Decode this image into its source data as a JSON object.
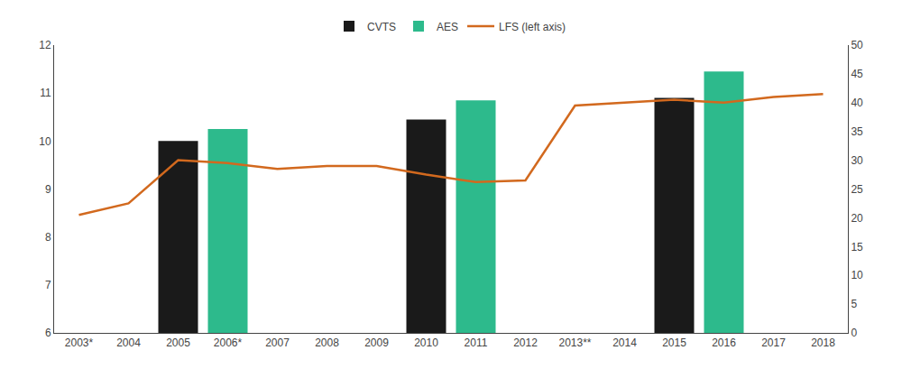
{
  "chart_data": {
    "type": "bar",
    "categories": [
      "2003*",
      "2004",
      "2005",
      "2006*",
      "2007",
      "2008",
      "2009",
      "2010",
      "2011",
      "2012",
      "2013**",
      "2014",
      "2015",
      "2016",
      "2017",
      "2018"
    ],
    "series": [
      {
        "name": "CVTS",
        "type": "bar",
        "color": "#1a1a1a",
        "values": [
          null,
          null,
          10.0,
          null,
          null,
          null,
          null,
          10.45,
          null,
          null,
          null,
          null,
          10.9,
          null,
          null,
          null
        ]
      },
      {
        "name": "AES",
        "type": "bar",
        "color": "#2dba8c",
        "values": [
          null,
          null,
          null,
          10.25,
          null,
          null,
          null,
          null,
          10.85,
          null,
          null,
          null,
          null,
          11.45,
          null,
          null
        ]
      },
      {
        "name": "LFS (left axis)",
        "type": "line",
        "axis": "y2",
        "color": "#d2691e",
        "values": [
          20.5,
          22.5,
          30.0,
          29.5,
          28.5,
          29.0,
          29.0,
          27.5,
          26.2,
          26.5,
          39.5,
          40.0,
          40.5,
          40.0,
          41.0,
          41.5
        ]
      }
    ],
    "ylim": [
      6,
      12
    ],
    "yticks": [
      6,
      7,
      8,
      9,
      10,
      11,
      12
    ],
    "y2lim": [
      0,
      50
    ],
    "y2ticks": [
      0,
      5,
      10,
      15,
      20,
      25,
      30,
      35,
      40,
      45,
      50
    ],
    "grid": false,
    "legend": "top"
  }
}
